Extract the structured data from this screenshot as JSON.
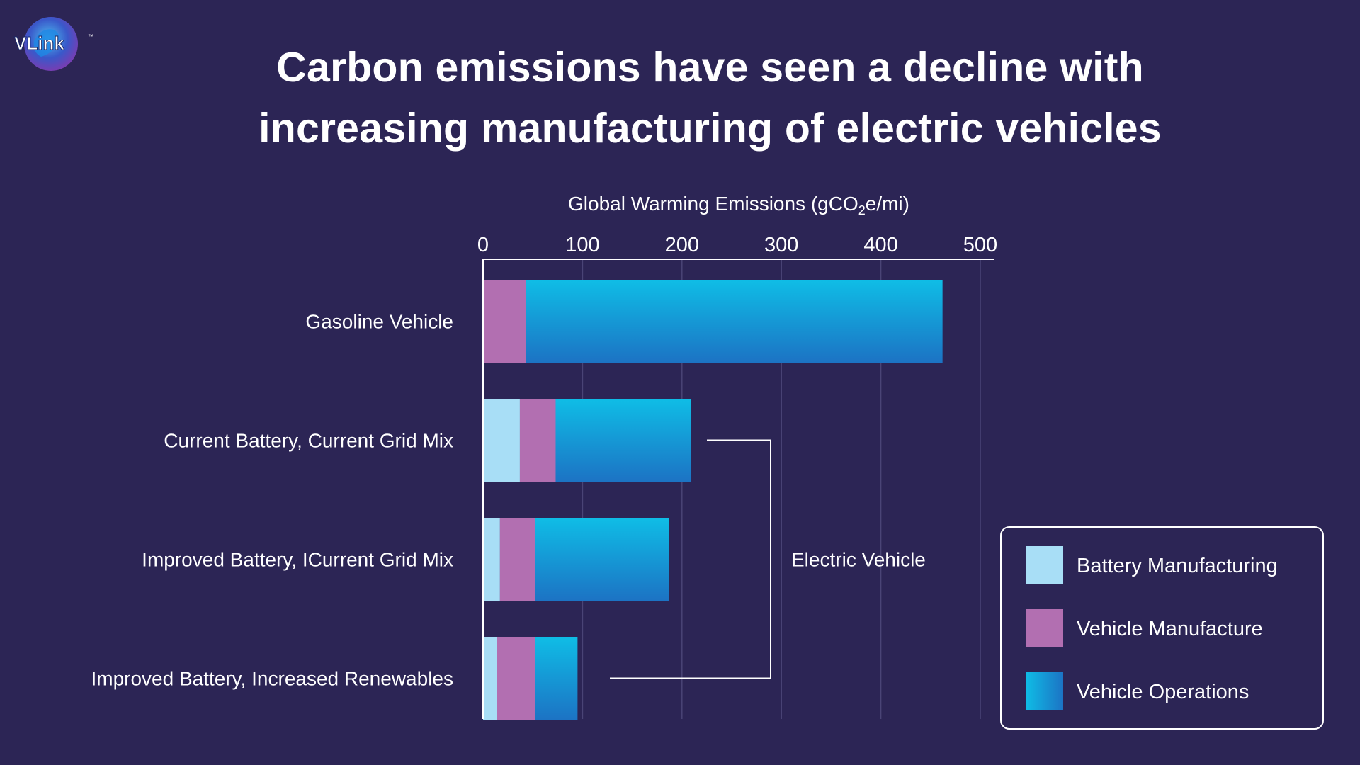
{
  "logo": {
    "text": "VLink",
    "trademark": "™"
  },
  "title_lines": [
    "Carbon emissions have seen a decline with",
    "increasing manufacturing of electric vehicles"
  ],
  "colors": {
    "background": "#2c2555",
    "battery_manufacturing": "#a8def6",
    "vehicle_manufacture": "#b26fb1",
    "vehicle_operations_top": "#0fbde6",
    "vehicle_operations_bottom": "#1c73c4",
    "gridline": "#4a4476",
    "axis": "#ffffff"
  },
  "chart_data": {
    "type": "bar",
    "orientation": "horizontal",
    "stacked": true,
    "xlabel_parts": [
      "Global Warming Emissions (gCO",
      "2",
      "e/mi)"
    ],
    "xlim": [
      0,
      500
    ],
    "xticks": [
      0,
      100,
      200,
      300,
      400,
      500
    ],
    "categories": [
      "Gasoline Vehicle",
      "Current Battery, Current Grid Mix",
      "Improved Battery, ICurrent Grid Mix",
      "Improved Battery, Increased Renewables"
    ],
    "series": [
      {
        "name": "Battery Manufacturing",
        "values": [
          0,
          37,
          17,
          14
        ]
      },
      {
        "name": "Vehicle Manufacture",
        "values": [
          43,
          36,
          35,
          38
        ]
      },
      {
        "name": "Vehicle Operations",
        "values": [
          419,
          136,
          135,
          43
        ]
      }
    ],
    "grid": true,
    "axis_position": "top",
    "legend_position": "bottom-right",
    "annotation": {
      "label": "Electric Vehicle",
      "spans_categories": [
        1,
        3
      ]
    }
  }
}
